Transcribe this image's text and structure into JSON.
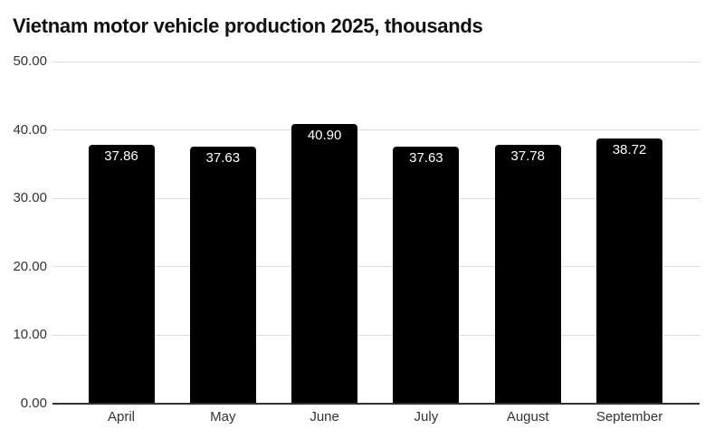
{
  "chart_data": {
    "type": "bar",
    "title": "Vietnam motor vehicle production 2025, thousands",
    "categories": [
      "April",
      "May",
      "June",
      "July",
      "August",
      "September"
    ],
    "values": [
      37.86,
      37.63,
      40.9,
      37.63,
      37.78,
      38.72
    ],
    "value_labels": [
      "37.86",
      "37.63",
      "40.90",
      "37.63",
      "37.78",
      "38.72"
    ],
    "xlabel": "",
    "ylabel": "",
    "ylim": [
      0,
      50
    ],
    "yticks": [
      0,
      10,
      20,
      30,
      40,
      50
    ],
    "ytick_labels": [
      "0.00",
      "10.00",
      "20.00",
      "30.00",
      "40.00",
      "50.00"
    ],
    "grid": true,
    "legend": false,
    "colors": {
      "bar": "#000000",
      "value_label": "#ffffff",
      "gridline": "#dddddd",
      "axis_line": "#333333",
      "tick_label": "#333333",
      "title": "#111111",
      "background": "#ffffff"
    }
  }
}
